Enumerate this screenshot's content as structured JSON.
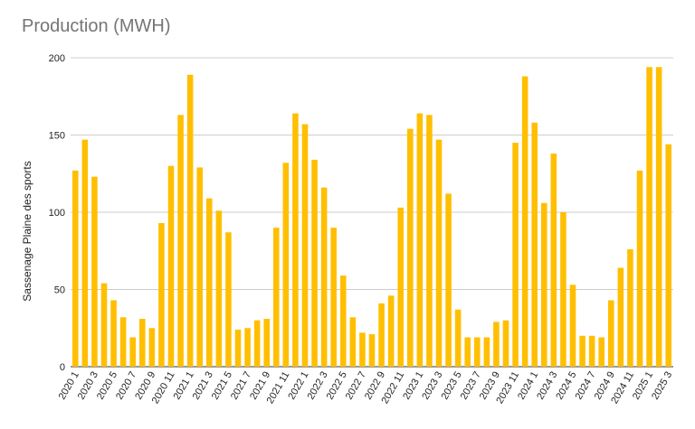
{
  "chart_data": {
    "type": "bar",
    "title": "Production (MWH)",
    "ylabel": "Sassenage Plaine des sports",
    "xlabel": "",
    "ylim": [
      0,
      200
    ],
    "yticks": [
      0,
      50,
      100,
      150,
      200
    ],
    "grid": true,
    "bar_color": "#FFBF00",
    "categories": [
      "2020 1",
      "2020 2",
      "2020 3",
      "2020 4",
      "2020 5",
      "2020 6",
      "2020 7",
      "2020 8",
      "2020 9",
      "2020 10",
      "2020 11",
      "2020 12",
      "2021 1",
      "2021 2",
      "2021 3",
      "2021 4",
      "2021 5",
      "2021 6",
      "2021 7",
      "2021 8",
      "2021 9",
      "2021 10",
      "2021 11",
      "2021 12",
      "2022 1",
      "2022 2",
      "2022 3",
      "2022 4",
      "2022 5",
      "2022 6",
      "2022 7",
      "2022 8",
      "2022 9",
      "2022 10",
      "2022 11",
      "2022 12",
      "2023 1",
      "2023 2",
      "2023 3",
      "2023 4",
      "2023 5",
      "2023 6",
      "2023 7",
      "2023 8",
      "2023 9",
      "2023 10",
      "2023 11",
      "2023 12",
      "2024 1",
      "2024 2",
      "2024 3",
      "2024 4",
      "2024 5",
      "2024 6",
      "2024 7",
      "2024 8",
      "2024 9",
      "2024 10",
      "2024 11",
      "2024 12",
      "2025 1",
      "2025 2",
      "2025 3"
    ],
    "visible_tick_labels": [
      "2020 1",
      "2020 3",
      "2020 5",
      "2020 7",
      "2020 9",
      "2020 11",
      "2021 1",
      "2021 3",
      "2021 5",
      "2021 7",
      "2021 9",
      "2021 11",
      "2022 1",
      "2022 3",
      "2022 5",
      "2022 7",
      "2022 9",
      "2022 11",
      "2023 1",
      "2023 3",
      "2023 5",
      "2023 7",
      "2023 9",
      "2023 11",
      "2024 1",
      "2024 3",
      "2024 5",
      "2024 7",
      "2024 9",
      "2024 11",
      "2025 1",
      "2025 3"
    ],
    "values": [
      127,
      147,
      123,
      54,
      43,
      32,
      19,
      31,
      25,
      93,
      130,
      163,
      189,
      129,
      109,
      101,
      87,
      24,
      25,
      30,
      31,
      90,
      132,
      164,
      157,
      134,
      116,
      90,
      59,
      32,
      22,
      21,
      41,
      46,
      103,
      154,
      164,
      163,
      147,
      112,
      37,
      19,
      19,
      19,
      29,
      30,
      145,
      188,
      158,
      106,
      138,
      100,
      53,
      20,
      20,
      19,
      43,
      64,
      76,
      127,
      194,
      194,
      144
    ]
  }
}
